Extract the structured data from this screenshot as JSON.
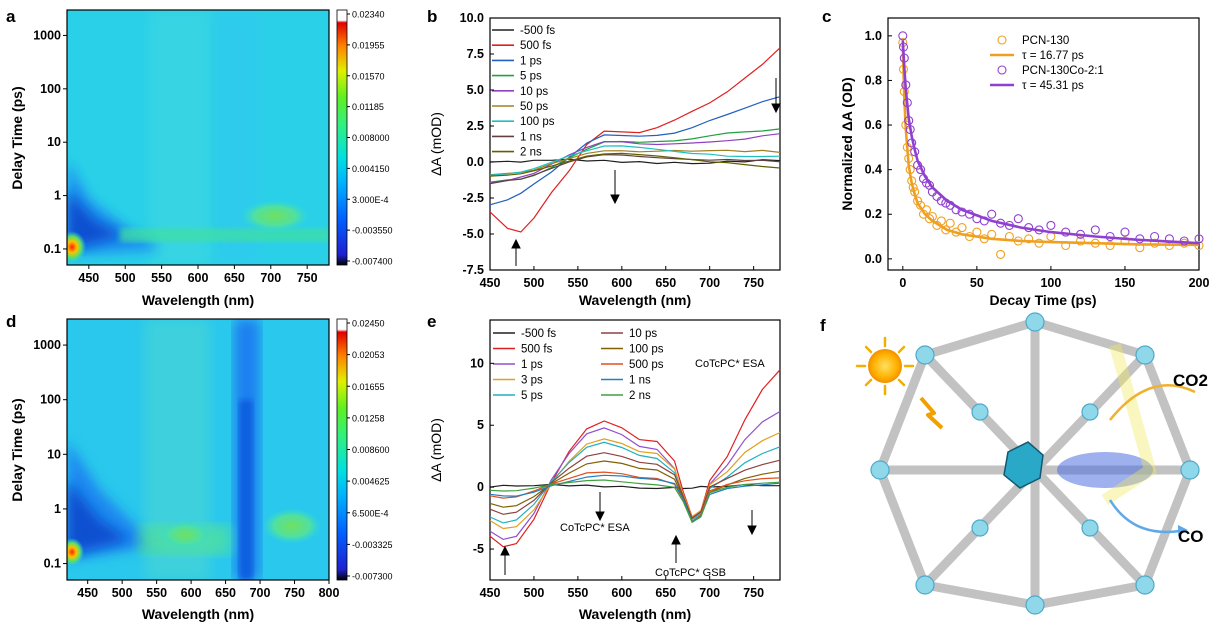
{
  "colors": {
    "heatmap_stops": [
      "#000000",
      "#1010d0",
      "#0050ff",
      "#00a0ff",
      "#00d8f0",
      "#20e8c0",
      "#40f060",
      "#a0f020",
      "#f0f000",
      "#ffa000",
      "#ff3000",
      "#e00000",
      "#ffffff"
    ],
    "panel_b_series": [
      "#202020",
      "#e02020",
      "#2060c0",
      "#20a040",
      "#9040c0",
      "#a08020",
      "#20c0c0",
      "#604040",
      "#606000"
    ],
    "panel_e_series": [
      "#202020",
      "#e02020",
      "#9050d0",
      "#e0a020",
      "#20b0c0",
      "#904040",
      "#806000",
      "#e05020",
      "#2080c0",
      "#40a040"
    ],
    "orange": "#f0a020",
    "purple": "#9040d0"
  },
  "panels": {
    "a": {
      "letter": "a",
      "ylabel": "Delay Time (ps)",
      "xlabel": "Wavelength (nm)"
    },
    "b": {
      "letter": "b",
      "ylabel": "ΔA (mOD)",
      "xlabel": "Wavelength (nm)"
    },
    "c": {
      "letter": "c",
      "ylabel": "Normalized ΔA (OD)",
      "xlabel": "Decay Time (ps)"
    },
    "d": {
      "letter": "d",
      "ylabel": "Delay Time (ps)",
      "xlabel": "Wavelength (nm)"
    },
    "e": {
      "letter": "e",
      "ylabel": "ΔA (mOD)",
      "xlabel": "Wavelength (nm)",
      "annotations": [
        "CoTcPC* ESA",
        "CoTcPC* ESA",
        "CoTcPC* GSB"
      ]
    },
    "f": {
      "letter": "f",
      "labels": [
        "CO2",
        "CO"
      ]
    }
  },
  "chart_data": [
    {
      "id": "a",
      "type": "heatmap",
      "xlabel": "Wavelength (nm)",
      "ylabel": "Delay Time (ps)",
      "xlim": [
        420,
        780
      ],
      "ylim": [
        0.05,
        3000
      ],
      "y_scale": "log",
      "x_ticks": [
        "450",
        "500",
        "550",
        "600",
        "650",
        "700",
        "750"
      ],
      "y_ticks": [
        "0.1",
        "1",
        "10",
        "100",
        "1000"
      ],
      "colorbar_ticks": [
        "0.02340",
        "0.01955",
        "0.01570",
        "0.01185",
        "0.008000",
        "0.004150",
        "3.000E-4",
        "-0.003550",
        "-0.007400"
      ]
    },
    {
      "id": "b",
      "type": "line",
      "xlabel": "Wavelength (nm)",
      "ylabel": "ΔA (mOD)",
      "xlim": [
        450,
        780
      ],
      "ylim": [
        -7.5,
        10.0
      ],
      "x_ticks": [
        "450",
        "500",
        "550",
        "600",
        "650",
        "700",
        "750"
      ],
      "y_ticks": [
        "-7.5",
        "-5.0",
        "-2.5",
        "0.0",
        "2.5",
        "5.0",
        "7.5",
        "10.0"
      ],
      "x": [
        450,
        470,
        485,
        500,
        520,
        540,
        560,
        580,
        600,
        620,
        640,
        660,
        680,
        700,
        720,
        740,
        760,
        780
      ],
      "series": [
        {
          "name": "-500 fs",
          "values": [
            0.0,
            0.0,
            -0.1,
            0.0,
            0.0,
            0.1,
            0.0,
            0.1,
            0.0,
            0.1,
            0.0,
            0.1,
            0.0,
            0.0,
            0.1,
            0.0,
            0.1,
            0.0
          ]
        },
        {
          "name": "500 fs",
          "values": [
            -3.5,
            -4.6,
            -4.8,
            -3.8,
            -2.0,
            -0.5,
            1.3,
            2.2,
            2.1,
            2.0,
            2.3,
            2.8,
            3.4,
            4.0,
            4.8,
            5.8,
            6.8,
            8.0
          ]
        },
        {
          "name": "1 ps",
          "values": [
            -2.9,
            -2.6,
            -2.2,
            -1.6,
            -0.8,
            0.2,
            1.2,
            1.8,
            1.8,
            1.8,
            1.9,
            2.1,
            2.5,
            3.0,
            3.4,
            3.8,
            4.2,
            4.5
          ]
        },
        {
          "name": "5 ps",
          "values": [
            -1.5,
            -1.3,
            -1.2,
            -0.9,
            -0.3,
            0.4,
            1.0,
            1.5,
            1.5,
            1.4,
            1.4,
            1.4,
            1.5,
            1.7,
            1.9,
            2.0,
            2.1,
            2.3
          ]
        },
        {
          "name": "10 ps",
          "values": [
            -1.3,
            -1.2,
            -1.0,
            -0.8,
            -0.2,
            0.4,
            0.9,
            1.3,
            1.3,
            1.2,
            1.2,
            1.3,
            1.4,
            1.5,
            1.6,
            1.7,
            1.9,
            2.0
          ]
        },
        {
          "name": "50 ps",
          "values": [
            -1.0,
            -0.9,
            -0.8,
            -0.6,
            -0.1,
            0.3,
            0.7,
            0.9,
            0.9,
            0.8,
            0.8,
            0.8,
            0.7,
            0.7,
            0.7,
            0.6,
            0.7,
            0.6
          ]
        },
        {
          "name": "100 ps",
          "values": [
            -0.8,
            -0.7,
            -0.6,
            -0.4,
            0.0,
            0.4,
            0.7,
            1.0,
            1.0,
            0.9,
            0.8,
            0.7,
            0.6,
            0.6,
            0.5,
            0.5,
            0.5,
            0.5
          ]
        },
        {
          "name": "1 ns",
          "values": [
            -1.6,
            -1.4,
            -1.3,
            -1.0,
            -0.5,
            0.0,
            0.4,
            0.6,
            0.6,
            0.5,
            0.4,
            0.3,
            0.2,
            0.1,
            0.1,
            0.0,
            0.0,
            -0.1
          ]
        },
        {
          "name": "2 ns",
          "values": [
            -0.9,
            -0.8,
            -0.7,
            -0.5,
            -0.2,
            0.1,
            0.4,
            0.5,
            0.5,
            0.4,
            0.3,
            0.2,
            0.1,
            0.0,
            0.0,
            -0.1,
            -0.2,
            -0.3
          ]
        }
      ]
    },
    {
      "id": "c",
      "type": "scatter",
      "xlabel": "Decay Time (ps)",
      "ylabel": "Normalized ΔA (OD)",
      "xlim": [
        -10,
        200
      ],
      "ylim": [
        -0.05,
        1.08
      ],
      "x_ticks": [
        "0",
        "50",
        "100",
        "150",
        "200"
      ],
      "y_ticks": [
        "0.0",
        "0.2",
        "0.4",
        "0.6",
        "0.8",
        "1.0"
      ],
      "series": [
        {
          "name": "PCN-130",
          "kind": "markers",
          "x": [
            0,
            0.5,
            1,
            2,
            3,
            4,
            5,
            6,
            7,
            8,
            10,
            12,
            14,
            16,
            18,
            20,
            23,
            26,
            29,
            32,
            36,
            40,
            45,
            50,
            55,
            60,
            66,
            72,
            78,
            85,
            92,
            100,
            110,
            120,
            130,
            140,
            150,
            160,
            170,
            180,
            190,
            200
          ],
          "y": [
            0.97,
            0.85,
            0.75,
            0.6,
            0.5,
            0.45,
            0.4,
            0.35,
            0.32,
            0.3,
            0.26,
            0.24,
            0.2,
            0.22,
            0.18,
            0.19,
            0.15,
            0.17,
            0.13,
            0.16,
            0.12,
            0.14,
            0.1,
            0.12,
            0.09,
            0.11,
            0.02,
            0.1,
            0.08,
            0.09,
            0.07,
            0.1,
            0.06,
            0.08,
            0.07,
            0.06,
            0.08,
            0.05,
            0.07,
            0.06,
            0.07,
            0.06
          ]
        },
        {
          "name": "τ = 16.77 ps",
          "kind": "fit",
          "x": [
            0,
            1,
            2,
            4,
            6,
            8,
            10,
            15,
            20,
            30,
            40,
            60,
            80,
            100,
            130,
            160,
            200
          ],
          "y": [
            0.95,
            0.72,
            0.58,
            0.42,
            0.34,
            0.29,
            0.25,
            0.2,
            0.17,
            0.13,
            0.11,
            0.09,
            0.08,
            0.075,
            0.07,
            0.065,
            0.063
          ]
        },
        {
          "name": "PCN-130Co-2:1",
          "kind": "markers",
          "x": [
            0,
            0.5,
            1,
            2,
            3,
            4,
            5,
            6,
            8,
            10,
            12,
            14,
            16,
            18,
            20,
            23,
            26,
            29,
            32,
            36,
            40,
            45,
            50,
            55,
            60,
            66,
            72,
            78,
            85,
            92,
            100,
            110,
            120,
            130,
            140,
            150,
            160,
            170,
            180,
            190,
            200
          ],
          "y": [
            1.0,
            0.95,
            0.9,
            0.78,
            0.7,
            0.62,
            0.58,
            0.52,
            0.48,
            0.42,
            0.4,
            0.36,
            0.34,
            0.33,
            0.3,
            0.28,
            0.26,
            0.25,
            0.24,
            0.22,
            0.21,
            0.2,
            0.18,
            0.17,
            0.2,
            0.16,
            0.15,
            0.18,
            0.14,
            0.13,
            0.15,
            0.12,
            0.11,
            0.13,
            0.1,
            0.12,
            0.09,
            0.1,
            0.09,
            0.08,
            0.09
          ]
        },
        {
          "name": "τ = 45.31 ps",
          "kind": "fit",
          "x": [
            0,
            1,
            2,
            4,
            6,
            8,
            10,
            15,
            20,
            30,
            40,
            60,
            80,
            100,
            130,
            160,
            200
          ],
          "y": [
            0.98,
            0.86,
            0.76,
            0.63,
            0.55,
            0.49,
            0.44,
            0.37,
            0.32,
            0.26,
            0.22,
            0.17,
            0.14,
            0.12,
            0.1,
            0.085,
            0.07
          ]
        }
      ]
    },
    {
      "id": "d",
      "type": "heatmap",
      "xlabel": "Wavelength (nm)",
      "ylabel": "Delay Time (ps)",
      "xlim": [
        420,
        800
      ],
      "ylim": [
        0.05,
        3000
      ],
      "y_scale": "log",
      "x_ticks": [
        "450",
        "500",
        "550",
        "600",
        "650",
        "700",
        "750",
        "800"
      ],
      "y_ticks": [
        "0.1",
        "1",
        "10",
        "100",
        "1000"
      ],
      "colorbar_ticks": [
        "0.02450",
        "0.02053",
        "0.01655",
        "0.01258",
        "0.008600",
        "0.004625",
        "6.500E-4",
        "-0.003325",
        "-0.007300"
      ]
    },
    {
      "id": "e",
      "type": "line",
      "xlabel": "Wavelength (nm)",
      "ylabel": "ΔA (mOD)",
      "xlim": [
        450,
        780
      ],
      "ylim": [
        -7.5,
        13.5
      ],
      "x_ticks": [
        "450",
        "500",
        "550",
        "600",
        "650",
        "700",
        "750"
      ],
      "y_ticks": [
        "-5",
        "0",
        "5",
        "10"
      ],
      "x": [
        450,
        465,
        480,
        500,
        520,
        540,
        560,
        580,
        600,
        620,
        640,
        660,
        670,
        680,
        690,
        700,
        720,
        740,
        760,
        780
      ],
      "series": [
        {
          "name": "-500 fs",
          "values": [
            0.0,
            0.1,
            0.0,
            0.0,
            0.1,
            0.0,
            0.1,
            0.0,
            0.1,
            0.0,
            0.0,
            0.1,
            0.0,
            0.0,
            0.1,
            0.0,
            0.0,
            0.1,
            0.0,
            0.0
          ]
        },
        {
          "name": "500 fs",
          "values": [
            -4.0,
            -4.8,
            -4.5,
            -2.5,
            0.5,
            3.0,
            4.8,
            5.4,
            4.8,
            3.8,
            3.6,
            2.0,
            -0.5,
            -2.5,
            -2.0,
            0.5,
            2.5,
            5.5,
            8.0,
            9.6
          ]
        },
        {
          "name": "1 ps",
          "values": [
            -3.5,
            -4.2,
            -4.0,
            -2.2,
            0.5,
            2.6,
            4.2,
            4.7,
            4.2,
            3.3,
            3.1,
            1.6,
            -0.6,
            -2.4,
            -1.9,
            0.3,
            1.8,
            3.8,
            5.2,
            6.0
          ]
        },
        {
          "name": "3 ps",
          "values": [
            -2.8,
            -3.4,
            -3.2,
            -1.8,
            0.4,
            2.2,
            3.6,
            4.0,
            3.6,
            2.9,
            2.7,
            1.4,
            -0.7,
            -2.5,
            -2.0,
            0.1,
            1.2,
            2.8,
            3.8,
            4.5
          ]
        },
        {
          "name": "5 ps",
          "values": [
            -2.3,
            -2.8,
            -2.6,
            -1.4,
            0.4,
            1.9,
            3.1,
            3.5,
            3.1,
            2.5,
            2.3,
            1.2,
            -0.7,
            -2.5,
            -2.0,
            0.0,
            0.9,
            2.0,
            2.7,
            3.2
          ]
        },
        {
          "name": "10 ps",
          "values": [
            -1.9,
            -2.3,
            -2.1,
            -1.1,
            0.4,
            1.6,
            2.6,
            2.9,
            2.6,
            2.1,
            1.9,
            1.0,
            -0.8,
            -2.6,
            -2.1,
            -0.1,
            0.6,
            1.3,
            1.8,
            2.2
          ]
        },
        {
          "name": "100 ps",
          "values": [
            -1.2,
            -1.5,
            -1.4,
            -0.7,
            0.3,
            1.1,
            1.8,
            2.0,
            1.8,
            1.4,
            1.3,
            0.6,
            -0.9,
            -2.7,
            -2.2,
            -0.3,
            0.3,
            0.8,
            1.1,
            1.3
          ]
        },
        {
          "name": "500 ps",
          "values": [
            -0.8,
            -1.0,
            -0.9,
            -0.4,
            0.2,
            0.7,
            1.2,
            1.3,
            1.2,
            0.9,
            0.8,
            0.3,
            -1.0,
            -2.8,
            -2.3,
            -0.4,
            0.1,
            0.4,
            0.6,
            0.7
          ]
        },
        {
          "name": "1 ns",
          "values": [
            -0.5,
            -0.6,
            -0.6,
            -0.3,
            0.2,
            0.5,
            0.8,
            0.9,
            0.8,
            0.6,
            0.5,
            0.2,
            -1.0,
            -2.8,
            -2.3,
            -0.5,
            0.0,
            0.2,
            0.3,
            0.4
          ]
        },
        {
          "name": "2 ns",
          "values": [
            -0.3,
            -0.4,
            -0.4,
            -0.2,
            0.1,
            0.3,
            0.5,
            0.6,
            0.5,
            0.4,
            0.3,
            0.1,
            -1.1,
            -2.8,
            -2.4,
            -0.5,
            -0.1,
            0.1,
            0.2,
            0.3
          ]
        }
      ]
    }
  ]
}
